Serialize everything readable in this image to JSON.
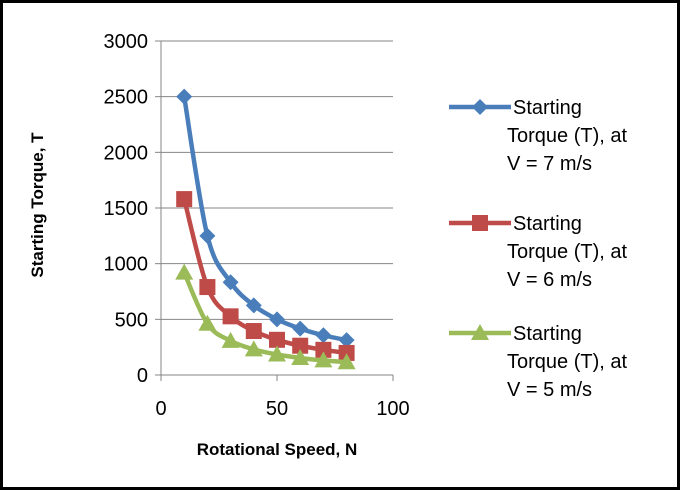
{
  "chart_data": {
    "type": "line",
    "title": "",
    "xlabel": "Rotational Speed, N",
    "ylabel": "Starting Torque, T",
    "xlim": [
      0,
      100
    ],
    "ylim": [
      0,
      3000
    ],
    "xticks": [
      "0",
      "50",
      "100"
    ],
    "yticks": [
      "0",
      "500",
      "1000",
      "1500",
      "2000",
      "2500",
      "3000"
    ],
    "grid": "horizontal",
    "legend_position": "right",
    "x": [
      10,
      20,
      30,
      40,
      50,
      60,
      70,
      80
    ],
    "series": [
      {
        "name": "Starting Torque (T), at V = 7 m/s",
        "name_lines": [
          "Starting",
          "Torque (T), at",
          "V = 7 m/s"
        ],
        "color": "#4a7ebb",
        "marker": "diamond",
        "values": [
          2500,
          1250,
          833,
          625,
          500,
          417,
          357,
          313
        ]
      },
      {
        "name": "Starting Torque (T), at V = 6 m/s",
        "name_lines": [
          "Starting",
          "Torque (T), at",
          "V = 6 m/s"
        ],
        "color": "#be4b48",
        "marker": "square",
        "values": [
          1580,
          790,
          527,
          395,
          316,
          263,
          226,
          198
        ]
      },
      {
        "name": "Starting Torque (T), at V = 5 m/s",
        "name_lines": [
          "Starting",
          "Torque (T), at",
          "V = 5 m/s"
        ],
        "color": "#9bbb59",
        "marker": "triangle",
        "values": [
          920,
          460,
          307,
          230,
          184,
          153,
          131,
          115
        ]
      }
    ]
  }
}
